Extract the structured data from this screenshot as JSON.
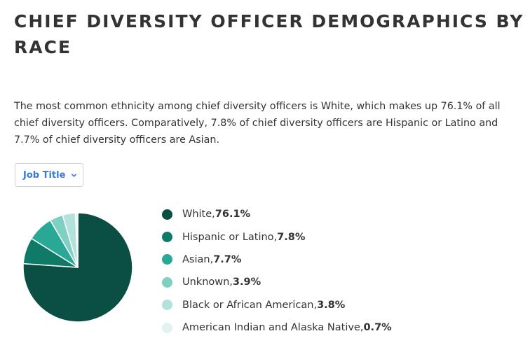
{
  "page": {
    "title": "CHIEF DIVERSITY OFFICER DEMOGRAPHICS BY RACE",
    "description": "The most common ethnicity among chief diversity officers is White, which makes up 76.1% of all chief diversity officers. Comparatively, 7.8% of chief diversity officers are Hispanic or Latino and 7.7% of chief diversity officers are Asian."
  },
  "filter": {
    "label": "Job Title",
    "icon": "chevron-down-icon"
  },
  "colors": {
    "accent": "#3a7bd5"
  },
  "chart_data": {
    "type": "pie",
    "title": "",
    "categories": [
      "White",
      "Hispanic or Latino",
      "Asian",
      "Unknown",
      "Black or African American",
      "American Indian and Alaska Native"
    ],
    "values": [
      76.1,
      7.8,
      7.7,
      3.9,
      3.8,
      0.7
    ],
    "value_labels": [
      "76.1%",
      "7.8%",
      "7.7%",
      "3.9%",
      "3.8%",
      "0.7%"
    ],
    "colors": [
      "#0b4f44",
      "#0e7a67",
      "#2aa896",
      "#7fcfc3",
      "#b3e1dc",
      "#e2f2f0"
    ],
    "legend_position": "right"
  }
}
